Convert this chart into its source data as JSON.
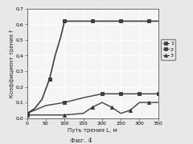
{
  "title": "",
  "xlabel": "Путь трения L, м",
  "ylabel": "Коэффициент трения f",
  "caption": "Фиг. 4",
  "xlim": [
    0,
    350
  ],
  "ylim": [
    0,
    0.7
  ],
  "xticks": [
    0,
    50,
    100,
    150,
    200,
    250,
    300,
    350
  ],
  "yticks": [
    0.0,
    0.1,
    0.2,
    0.3,
    0.4,
    0.5,
    0.6,
    0.7
  ],
  "series": [
    {
      "label": "1",
      "x": [
        0,
        20,
        40,
        60,
        75,
        90,
        100,
        125,
        150,
        175,
        200,
        225,
        250,
        275,
        300,
        325,
        350
      ],
      "y": [
        0.03,
        0.06,
        0.12,
        0.25,
        0.4,
        0.52,
        0.62,
        0.62,
        0.62,
        0.62,
        0.62,
        0.62,
        0.62,
        0.62,
        0.62,
        0.62,
        0.62
      ],
      "color": "#404040",
      "marker": "s",
      "linestyle": "-",
      "linewidth": 1.2,
      "markersize": 3.0,
      "markevery": 3
    },
    {
      "label": "2",
      "x": [
        0,
        50,
        100,
        150,
        200,
        225,
        250,
        275,
        300,
        325,
        350
      ],
      "y": [
        0.03,
        0.08,
        0.1,
        0.13,
        0.155,
        0.155,
        0.155,
        0.155,
        0.155,
        0.155,
        0.155
      ],
      "color": "#404040",
      "marker": "s",
      "linestyle": "-",
      "linewidth": 1.0,
      "markersize": 3.0,
      "markevery": 2
    },
    {
      "label": "3",
      "x": [
        0,
        50,
        100,
        150,
        175,
        200,
        225,
        250,
        275,
        300,
        325,
        350
      ],
      "y": [
        0.02,
        0.02,
        0.02,
        0.03,
        0.07,
        0.1,
        0.07,
        0.03,
        0.05,
        0.1,
        0.1,
        0.1
      ],
      "color": "#404040",
      "marker": "^",
      "linestyle": "-",
      "linewidth": 1.0,
      "markersize": 3.0,
      "markevery": 2
    }
  ],
  "legend_labels": [
    "1",
    "2",
    "3"
  ],
  "legend_markers": [
    "s",
    "s",
    "^"
  ],
  "background_color": "#e8e8e8",
  "plot_bg_color": "#f5f5f5",
  "grid_color": "#ffffff",
  "font_color": "#222222"
}
